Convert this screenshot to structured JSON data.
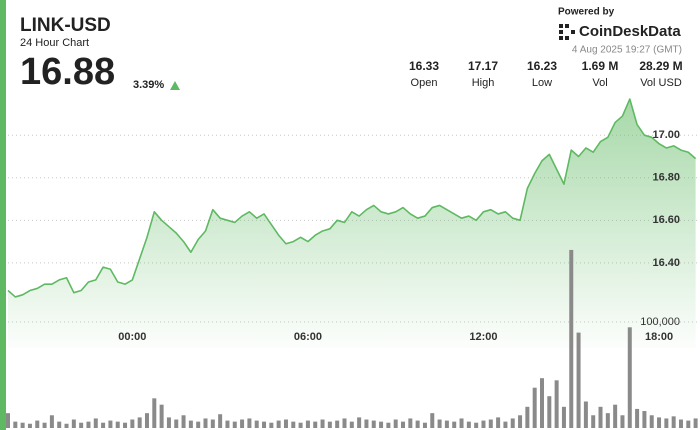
{
  "header": {
    "symbol": "LINK-USD",
    "subtitle": "24 Hour Chart",
    "price": "16.88",
    "change": "3.39%"
  },
  "stats": [
    {
      "value": "16.33",
      "label": "Open"
    },
    {
      "value": "17.17",
      "label": "High"
    },
    {
      "value": "16.23",
      "label": "Low"
    },
    {
      "value": "1.69 M",
      "label": "Vol"
    },
    {
      "value": "28.29 M",
      "label": "Vol USD"
    }
  ],
  "branding": {
    "powered": "Powered by",
    "brand": "CoinDeskData",
    "timestamp": "4 Aug 2025 19:27 (GMT)"
  },
  "chart_data": {
    "type": "area",
    "x": [
      -4.25,
      -4,
      -3.75,
      -3.5,
      -3.25,
      -3,
      -2.75,
      -2.5,
      -2.25,
      -2,
      -1.75,
      -1.5,
      -1.25,
      -1,
      -0.75,
      -0.5,
      -0.25,
      0,
      0.25,
      0.5,
      0.75,
      1,
      1.25,
      1.5,
      1.75,
      2,
      2.25,
      2.5,
      2.75,
      3,
      3.25,
      3.5,
      3.75,
      4,
      4.25,
      4.5,
      4.75,
      5,
      5.25,
      5.5,
      5.75,
      6,
      6.25,
      6.5,
      6.75,
      7,
      7.25,
      7.5,
      7.75,
      8,
      8.25,
      8.5,
      8.75,
      9,
      9.25,
      9.5,
      9.75,
      10,
      10.25,
      10.5,
      10.75,
      11,
      11.25,
      11.5,
      11.75,
      12,
      12.25,
      12.5,
      12.75,
      13,
      13.25,
      13.5,
      13.75,
      14,
      14.25,
      14.5,
      14.75,
      15,
      15.25,
      15.5,
      15.75,
      16,
      16.25,
      16.5,
      16.75,
      17,
      17.25,
      17.5,
      17.75,
      18,
      18.25,
      18.5,
      18.75,
      19,
      19.25
    ],
    "series": [
      {
        "color": "#5fb962",
        "values": [
          16.27,
          16.24,
          16.25,
          16.27,
          16.28,
          16.3,
          16.3,
          16.32,
          16.33,
          16.26,
          16.27,
          16.31,
          16.32,
          16.38,
          16.37,
          16.31,
          16.3,
          16.32,
          16.42,
          16.52,
          16.64,
          16.6,
          16.57,
          16.54,
          16.5,
          16.45,
          16.51,
          16.55,
          16.65,
          16.61,
          16.6,
          16.59,
          16.62,
          16.64,
          16.61,
          16.63,
          16.58,
          16.53,
          16.49,
          16.5,
          16.52,
          16.5,
          16.53,
          16.55,
          16.56,
          16.6,
          16.59,
          16.64,
          16.62,
          16.65,
          16.67,
          16.64,
          16.63,
          16.64,
          16.66,
          16.63,
          16.61,
          16.62,
          16.66,
          16.67,
          16.65,
          16.63,
          16.61,
          16.62,
          16.6,
          16.64,
          16.65,
          16.63,
          16.64,
          16.61,
          16.6,
          16.75,
          16.82,
          16.88,
          16.91,
          16.84,
          16.77,
          16.93,
          16.9,
          16.94,
          16.92,
          16.97,
          16.99,
          17.06,
          17.09,
          17.17,
          17.05,
          17.0,
          16.99,
          16.96,
          16.94,
          16.95,
          16.93,
          16.92,
          16.89
        ]
      },
      {
        "type": "bar",
        "axis": "y2",
        "color": "#8a8a8a",
        "values": [
          14000,
          6000,
          5000,
          4000,
          7000,
          5000,
          12000,
          6000,
          4000,
          8000,
          5000,
          6000,
          9000,
          5000,
          7000,
          6000,
          5000,
          8000,
          10000,
          14000,
          28000,
          22000,
          10000,
          8000,
          12000,
          7000,
          6000,
          9000,
          8000,
          13000,
          7000,
          6000,
          8000,
          9000,
          7000,
          6000,
          5000,
          7000,
          8000,
          6000,
          5000,
          7000,
          6000,
          8000,
          6000,
          7000,
          9000,
          6000,
          10000,
          8000,
          7000,
          6000,
          5000,
          8000,
          6000,
          9000,
          7000,
          5000,
          14000,
          8000,
          7000,
          6000,
          9000,
          6000,
          5000,
          7000,
          8000,
          10000,
          6000,
          9000,
          12000,
          20000,
          38000,
          47000,
          30000,
          45000,
          20000,
          168000,
          90000,
          25000,
          12000,
          20000,
          14000,
          22000,
          12000,
          95000,
          18000,
          16000,
          12000,
          10000,
          9000,
          11000,
          8000,
          7000,
          9000
        ]
      }
    ],
    "xlim": [
      -4.25,
      19.4
    ],
    "xticks": [
      {
        "value": 0,
        "label": "00:00"
      },
      {
        "value": 6,
        "label": "06:00"
      },
      {
        "value": 12,
        "label": "12:00"
      },
      {
        "value": 18,
        "label": "18:00"
      }
    ],
    "ylim": [
      16.0,
      17.25
    ],
    "yticks": [
      {
        "value": 16.4,
        "label": "16.40"
      },
      {
        "value": 16.6,
        "label": "16.60"
      },
      {
        "value": 16.8,
        "label": "16.80"
      },
      {
        "value": 17.0,
        "label": "17.00"
      }
    ],
    "y2lim": [
      0,
      400000
    ],
    "y2ticks": [
      {
        "value": 100000,
        "label": "100,000"
      }
    ],
    "grid": true
  }
}
